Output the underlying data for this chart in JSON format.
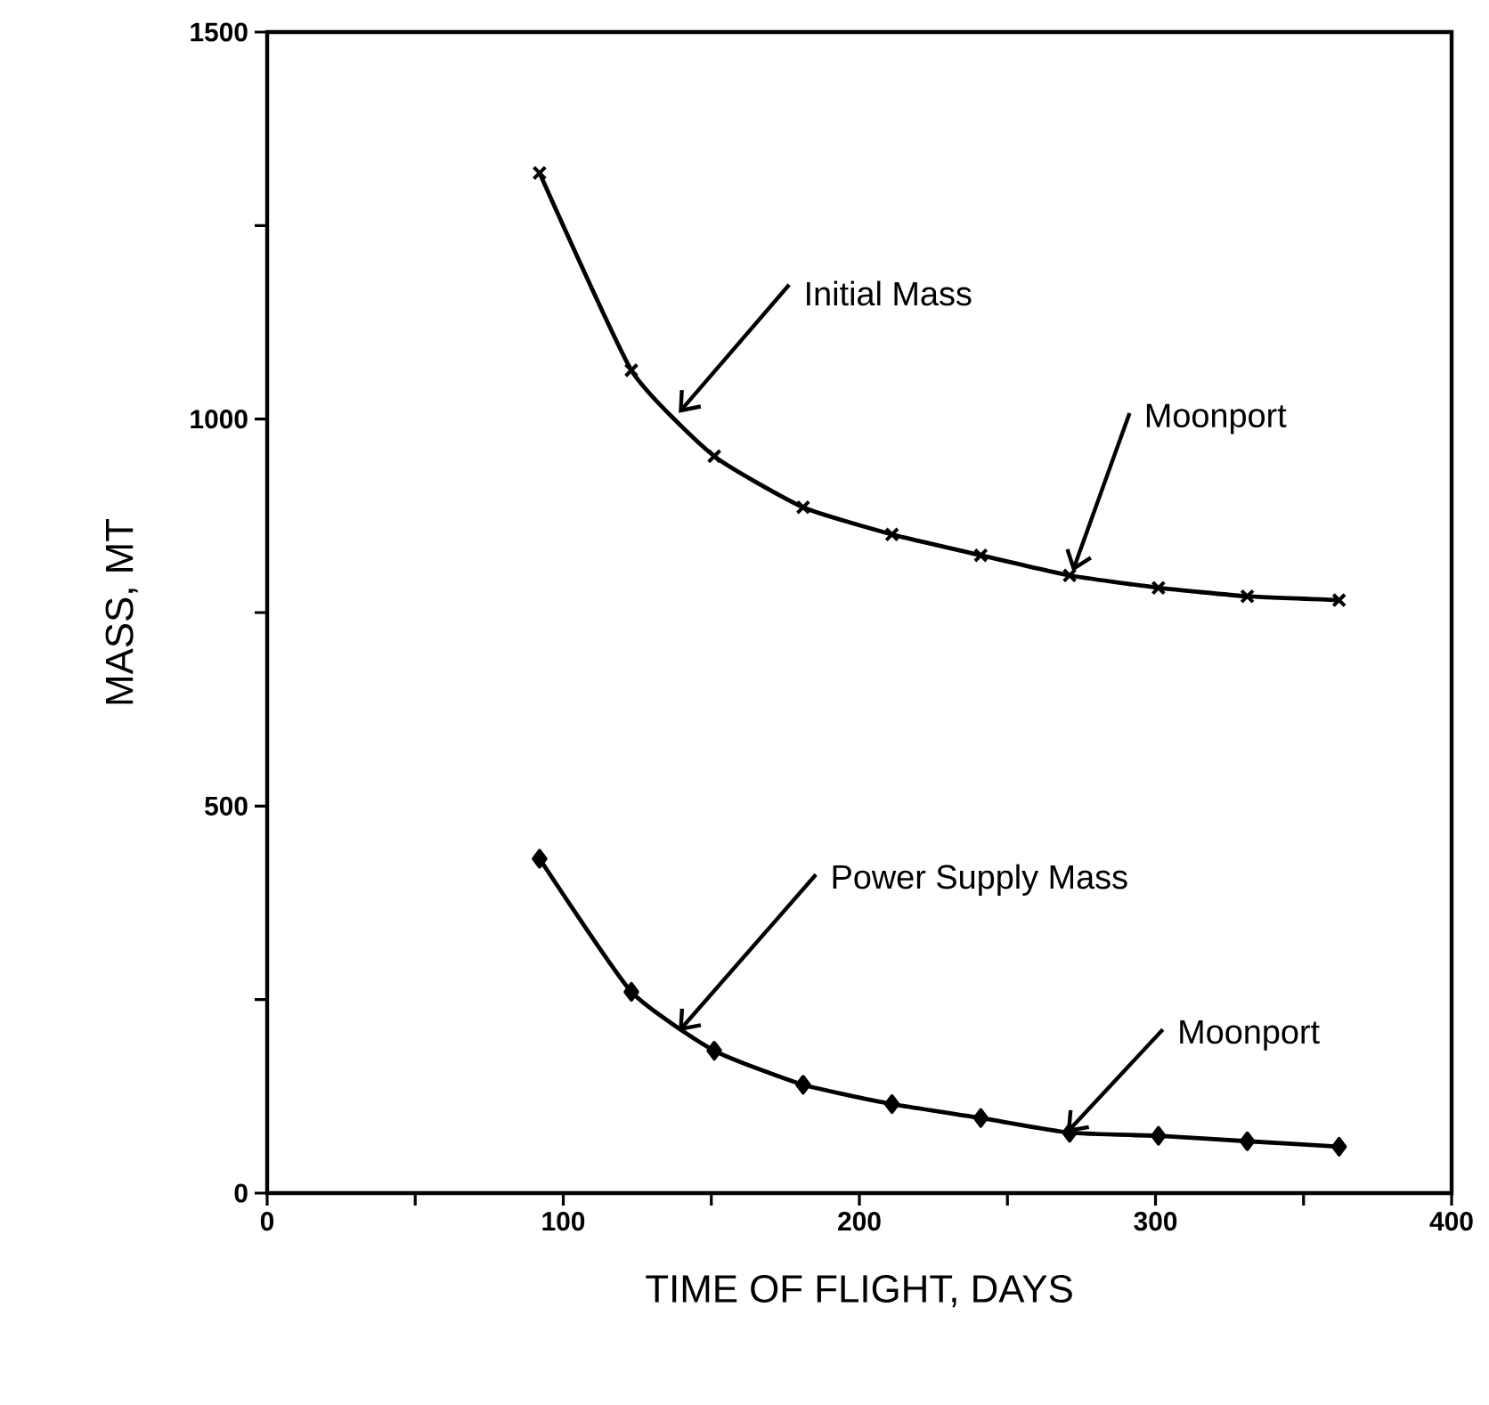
{
  "chart_data": {
    "type": "line",
    "xlabel": "TIME OF FLIGHT, DAYS",
    "ylabel": "MASS, MT",
    "xlim": [
      0,
      400
    ],
    "ylim": [
      0,
      1500
    ],
    "xticks": [
      0,
      100,
      200,
      300,
      400
    ],
    "yticks": [
      0,
      500,
      1000,
      1500
    ],
    "line_style": "solid",
    "series": [
      {
        "color": "#000000",
        "marker": "cross",
        "x": [
          92,
          123,
          151,
          181,
          211,
          241,
          271,
          301,
          331,
          362
        ],
        "values": [
          1318,
          1063,
          952,
          886,
          851,
          824,
          798,
          782,
          771,
          766
        ]
      },
      {
        "color": "#000000",
        "marker": "diamond",
        "x": [
          92,
          123,
          151,
          181,
          211,
          241,
          271,
          301,
          331,
          362
        ],
        "values": [
          432,
          260,
          184,
          140,
          115,
          97,
          78,
          74,
          67,
          60
        ]
      }
    ],
    "annotations": [
      {
        "text": "Initial Mass",
        "x": 139,
        "y": 1008
      },
      {
        "text": "Moonport",
        "x": 272,
        "y": 803
      },
      {
        "text": "Power Supply Mass",
        "x": 139,
        "y": 209
      },
      {
        "text": "Moonport",
        "x": 270,
        "y": 78
      }
    ]
  }
}
